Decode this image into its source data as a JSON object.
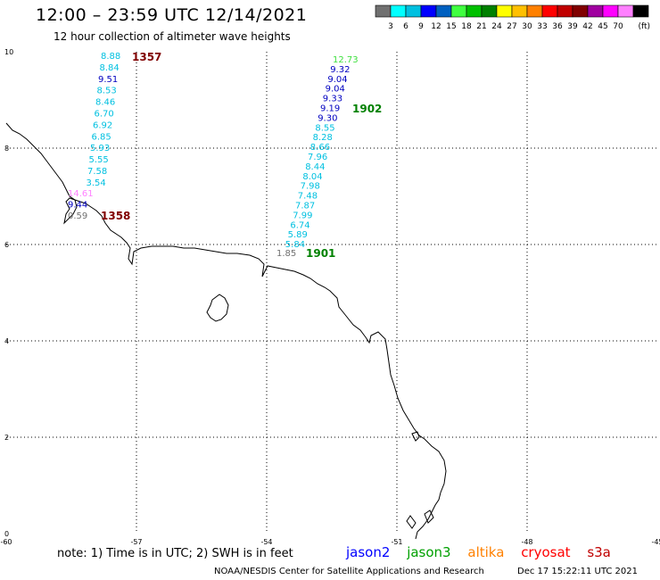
{
  "header": {
    "title": "12:00 – 23:59 UTC 12/14/2021",
    "subtitle": "12 hour collection of altimeter wave heights"
  },
  "colorbar": {
    "colors": [
      "#707070",
      "#00ffff",
      "#00c0e0",
      "#0000ff",
      "#0060c0",
      "#40ff40",
      "#00c000",
      "#008000",
      "#ffff00",
      "#ffc000",
      "#ff8000",
      "#ff0000",
      "#c00000",
      "#800000",
      "#a000a0",
      "#ff00ff",
      "#ff80ff",
      "#000000"
    ],
    "labels": [
      "3",
      "6",
      "9",
      "12",
      "15",
      "18",
      "21",
      "24",
      "27",
      "30",
      "33",
      "36",
      "39",
      "42",
      "45",
      "70"
    ],
    "unit": "(ft)"
  },
  "axes": {
    "x_ticks": [
      "-60",
      "-57",
      "-54",
      "-51",
      "-48",
      "-45"
    ],
    "y_ticks": [
      "10",
      "8",
      "6",
      "4",
      "2",
      "0"
    ]
  },
  "tracks": [
    {
      "time": "1357",
      "time_color": "#800000",
      "points": [
        {
          "v": "8.88",
          "c": "#00c0e0"
        },
        {
          "v": "8.84",
          "c": "#00c0e0"
        },
        {
          "v": "9.51",
          "c": "#0000c0"
        },
        {
          "v": "8.53",
          "c": "#00c0e0"
        },
        {
          "v": "8.46",
          "c": "#00c0e0"
        },
        {
          "v": "6.70",
          "c": "#00c0e0"
        },
        {
          "v": "6.92",
          "c": "#00c0e0"
        },
        {
          "v": "6.85",
          "c": "#00c0e0"
        },
        {
          "v": "5.93",
          "c": "#00c0e0"
        },
        {
          "v": "5.55",
          "c": "#00c0e0"
        },
        {
          "v": "7.58",
          "c": "#00c0e0"
        },
        {
          "v": "3.54",
          "c": "#00c0e0"
        }
      ]
    },
    {
      "time": "1358",
      "time_color": "#800000",
      "points": [
        {
          "v": "14.61",
          "c": "#ff80ff"
        },
        {
          "v": "9.44",
          "c": "#0000c0"
        },
        {
          "v": "0.59",
          "c": "#707070"
        }
      ]
    },
    {
      "time": "1902",
      "time_color": "#008000",
      "points": [
        {
          "v": "12.73",
          "c": "#40e040"
        },
        {
          "v": "9.32",
          "c": "#0000c0"
        },
        {
          "v": "9.04",
          "c": "#0000c0"
        },
        {
          "v": "9.04",
          "c": "#0000c0"
        },
        {
          "v": "9.33",
          "c": "#0000c0"
        },
        {
          "v": "9.19",
          "c": "#0000c0"
        },
        {
          "v": "9.30",
          "c": "#0000c0"
        },
        {
          "v": "8.55",
          "c": "#00c0e0"
        },
        {
          "v": "8.28",
          "c": "#00c0e0"
        },
        {
          "v": "8.66",
          "c": "#00c0e0"
        },
        {
          "v": "7.96",
          "c": "#00c0e0"
        },
        {
          "v": "8.44",
          "c": "#00c0e0"
        },
        {
          "v": "8.04",
          "c": "#00c0e0"
        },
        {
          "v": "7.98",
          "c": "#00c0e0"
        },
        {
          "v": "7.48",
          "c": "#00c0e0"
        },
        {
          "v": "7.87",
          "c": "#00c0e0"
        },
        {
          "v": "7.99",
          "c": "#00c0e0"
        },
        {
          "v": "6.74",
          "c": "#00c0e0"
        },
        {
          "v": "5.89",
          "c": "#00c0e0"
        },
        {
          "v": "5.84",
          "c": "#00c0e0"
        }
      ]
    },
    {
      "time": "1901",
      "time_color": "#008000",
      "points": [
        {
          "v": "1.85",
          "c": "#707070"
        }
      ]
    }
  ],
  "footer": {
    "note": "note: 1) Time is in UTC; 2) SWH is in feet",
    "satellites": [
      {
        "name": "jason2",
        "color": "#0000ff"
      },
      {
        "name": "jason3",
        "color": "#00a000"
      },
      {
        "name": "altika",
        "color": "#ff8000"
      },
      {
        "name": "cryosat",
        "color": "#ff0000"
      },
      {
        "name": "s3a",
        "color": "#c00000"
      }
    ],
    "credit": "NOAA/NESDIS Center for Satellite Applications and Research",
    "date": "Dec 17 15:22:11 UTC 2021"
  }
}
